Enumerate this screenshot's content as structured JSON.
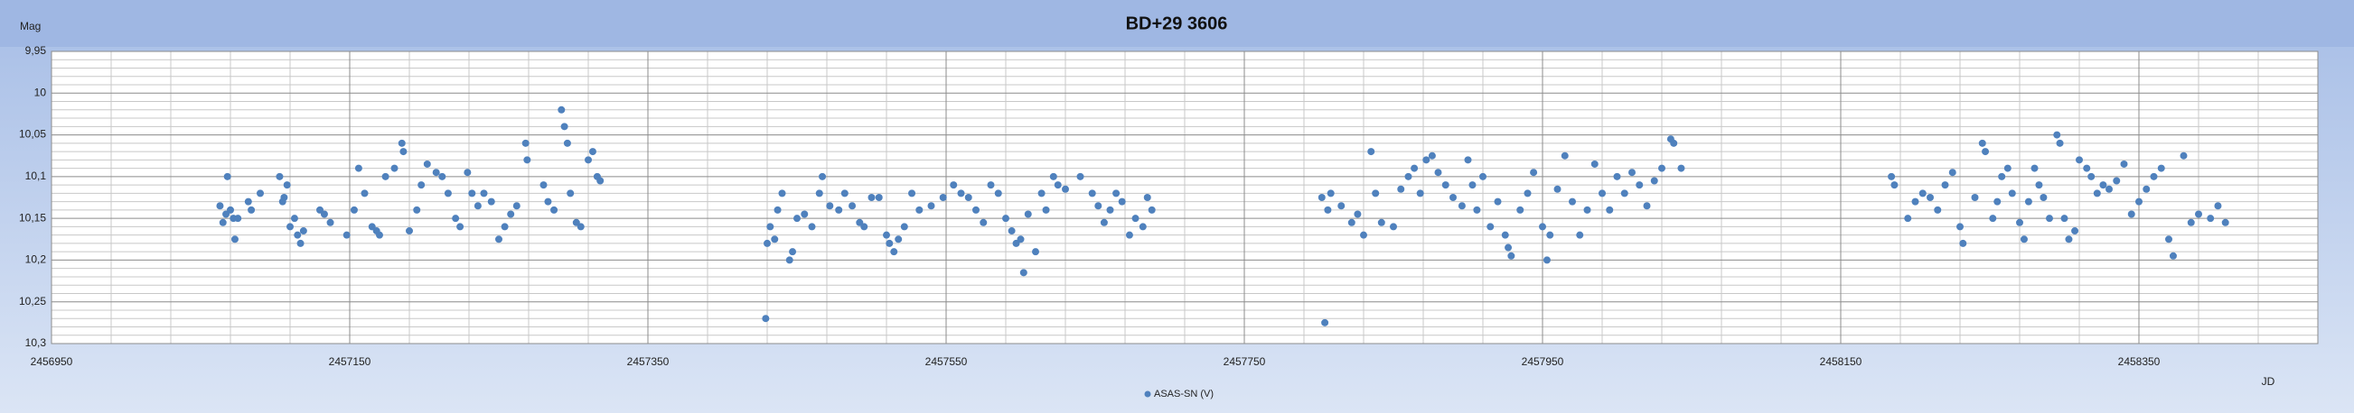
{
  "chart_data": {
    "type": "scatter",
    "title": "BD+29 3606",
    "y_label": "Mag",
    "x_label": "JD",
    "xlim": [
      2456950,
      2458470
    ],
    "xticks": [
      2456950,
      2457150,
      2457350,
      2457550,
      2457750,
      2457950,
      2458150,
      2458350
    ],
    "ylim": [
      9.95,
      10.3
    ],
    "y_inverted": true,
    "yticks": [
      {
        "value": 9.95,
        "label": "9,95"
      },
      10,
      {
        "value": 10.05,
        "label": "10,05"
      },
      {
        "value": 10.1,
        "label": "10,1"
      },
      {
        "value": 10.15,
        "label": "10,15"
      },
      {
        "value": 10.2,
        "label": "10,2"
      },
      {
        "value": 10.25,
        "label": "10,25"
      },
      {
        "value": 10.3,
        "label": "10,3"
      }
    ],
    "grid": true,
    "legend": "bottom",
    "x": [
      2457063,
      2457065,
      2457067,
      2457068,
      2457070,
      2457072,
      2457073,
      2457075,
      2457082,
      2457084,
      2457090,
      2457103,
      2457105,
      2457106,
      2457108,
      2457110,
      2457113,
      2457115,
      2457117,
      2457119,
      2457130,
      2457133,
      2457137,
      2457148,
      2457153,
      2457156,
      2457160,
      2457165,
      2457168,
      2457170,
      2457174,
      2457180,
      2457185,
      2457186,
      2457190,
      2457195,
      2457198,
      2457202,
      2457208,
      2457212,
      2457216,
      2457221,
      2457224,
      2457229,
      2457232,
      2457236,
      2457240,
      2457245,
      2457250,
      2457254,
      2457258,
      2457262,
      2457268,
      2457269,
      2457280,
      2457283,
      2457287,
      2457292,
      2457294,
      2457296,
      2457298,
      2457302,
      2457305,
      2457310,
      2457313,
      2457316,
      2457318,
      2457429,
      2457430,
      2457432,
      2457435,
      2457437,
      2457440,
      2457445,
      2457447,
      2457450,
      2457455,
      2457460,
      2457465,
      2457467,
      2457472,
      2457478,
      2457482,
      2457487,
      2457492,
      2457495,
      2457500,
      2457505,
      2457510,
      2457512,
      2457515,
      2457518,
      2457522,
      2457527,
      2457532,
      2457540,
      2457548,
      2457555,
      2457560,
      2457565,
      2457570,
      2457575,
      2457580,
      2457585,
      2457590,
      2457594,
      2457597,
      2457600,
      2457602,
      2457605,
      2457610,
      2457614,
      2457617,
      2457622,
      2457625,
      2457630,
      2457640,
      2457648,
      2457652,
      2457656,
      2457660,
      2457664,
      2457668,
      2457673,
      2457677,
      2457682,
      2457685,
      2457688,
      2457802,
      2457804,
      2457806,
      2457808,
      2457815,
      2457822,
      2457826,
      2457830,
      2457835,
      2457838,
      2457842,
      2457850,
      2457855,
      2457860,
      2457864,
      2457868,
      2457872,
      2457876,
      2457880,
      2457885,
      2457890,
      2457896,
      2457900,
      2457903,
      2457906,
      2457910,
      2457915,
      2457920,
      2457925,
      2457927,
      2457929,
      2457935,
      2457940,
      2457944,
      2457950,
      2457953,
      2457955,
      2457960,
      2457965,
      2457970,
      2457975,
      2457980,
      2457985,
      2457990,
      2457995,
      2458000,
      2458005,
      2458010,
      2458015,
      2458020,
      2458025,
      2458030,
      2458036,
      2458038,
      2458043,
      2458184,
      2458186,
      2458195,
      2458200,
      2458205,
      2458210,
      2458215,
      2458220,
      2458225,
      2458230,
      2458232,
      2458240,
      2458245,
      2458247,
      2458252,
      2458255,
      2458258,
      2458262,
      2458265,
      2458270,
      2458273,
      2458276,
      2458280,
      2458283,
      2458286,
      2458290,
      2458295,
      2458297,
      2458300,
      2458303,
      2458307,
      2458310,
      2458315,
      2458318,
      2458322,
      2458326,
      2458330,
      2458335,
      2458340,
      2458345,
      2458350,
      2458355,
      2458360,
      2458365,
      2458370,
      2458373,
      2458380,
      2458385,
      2458390,
      2458398,
      2458403,
      2458408
    ],
    "series": [
      {
        "name": "ASAS-SN (V)",
        "color": "#4f81bd",
        "values": [
          10.135,
          10.155,
          10.145,
          10.1,
          10.14,
          10.15,
          10.175,
          10.15,
          10.13,
          10.14,
          10.12,
          10.1,
          10.13,
          10.125,
          10.11,
          10.16,
          10.15,
          10.17,
          10.18,
          10.165,
          10.14,
          10.145,
          10.155,
          10.17,
          10.14,
          10.09,
          10.12,
          10.16,
          10.165,
          10.17,
          10.1,
          10.09,
          10.06,
          10.07,
          10.165,
          10.14,
          10.11,
          10.085,
          10.095,
          10.1,
          10.12,
          10.15,
          10.16,
          10.095,
          10.12,
          10.135,
          10.12,
          10.13,
          10.175,
          10.16,
          10.145,
          10.135,
          10.06,
          10.08,
          10.11,
          10.13,
          10.14,
          10.02,
          10.04,
          10.06,
          10.12,
          10.155,
          10.16,
          10.08,
          10.07,
          10.1,
          10.105,
          10.27,
          10.18,
          10.16,
          10.175,
          10.14,
          10.12,
          10.2,
          10.19,
          10.15,
          10.145,
          10.16,
          10.12,
          10.1,
          10.135,
          10.14,
          10.12,
          10.135,
          10.155,
          10.16,
          10.125,
          10.125,
          10.17,
          10.18,
          10.19,
          10.175,
          10.16,
          10.12,
          10.14,
          10.135,
          10.125,
          10.11,
          10.12,
          10.125,
          10.14,
          10.155,
          10.11,
          10.12,
          10.15,
          10.165,
          10.18,
          10.175,
          10.215,
          10.145,
          10.19,
          10.12,
          10.14,
          10.1,
          10.11,
          10.115,
          10.1,
          10.12,
          10.135,
          10.155,
          10.14,
          10.12,
          10.13,
          10.17,
          10.15,
          10.16,
          10.125,
          10.14,
          10.125,
          10.275,
          10.14,
          10.12,
          10.135,
          10.155,
          10.145,
          10.17,
          10.07,
          10.12,
          10.155,
          10.16,
          10.115,
          10.1,
          10.09,
          10.12,
          10.08,
          10.075,
          10.095,
          10.11,
          10.125,
          10.135,
          10.08,
          10.11,
          10.14,
          10.1,
          10.16,
          10.13,
          10.17,
          10.185,
          10.195,
          10.14,
          10.12,
          10.095,
          10.16,
          10.2,
          10.17,
          10.115,
          10.075,
          10.13,
          10.17,
          10.14,
          10.085,
          10.12,
          10.14,
          10.1,
          10.12,
          10.095,
          10.11,
          10.135,
          10.105,
          10.09,
          10.055,
          10.06,
          10.09,
          10.1,
          10.11,
          10.15,
          10.13,
          10.12,
          10.125,
          10.14,
          10.11,
          10.095,
          10.16,
          10.18,
          10.125,
          10.06,
          10.07,
          10.15,
          10.13,
          10.1,
          10.09,
          10.12,
          10.155,
          10.175,
          10.13,
          10.09,
          10.11,
          10.125,
          10.15,
          10.05,
          10.06,
          10.15,
          10.175,
          10.165,
          10.08,
          10.09,
          10.1,
          10.12,
          10.11,
          10.115,
          10.105,
          10.085,
          10.145,
          10.13,
          10.115,
          10.1,
          10.09,
          10.175,
          10.195,
          10.075,
          10.155,
          10.145,
          10.15,
          10.135,
          10.155
        ]
      }
    ]
  }
}
